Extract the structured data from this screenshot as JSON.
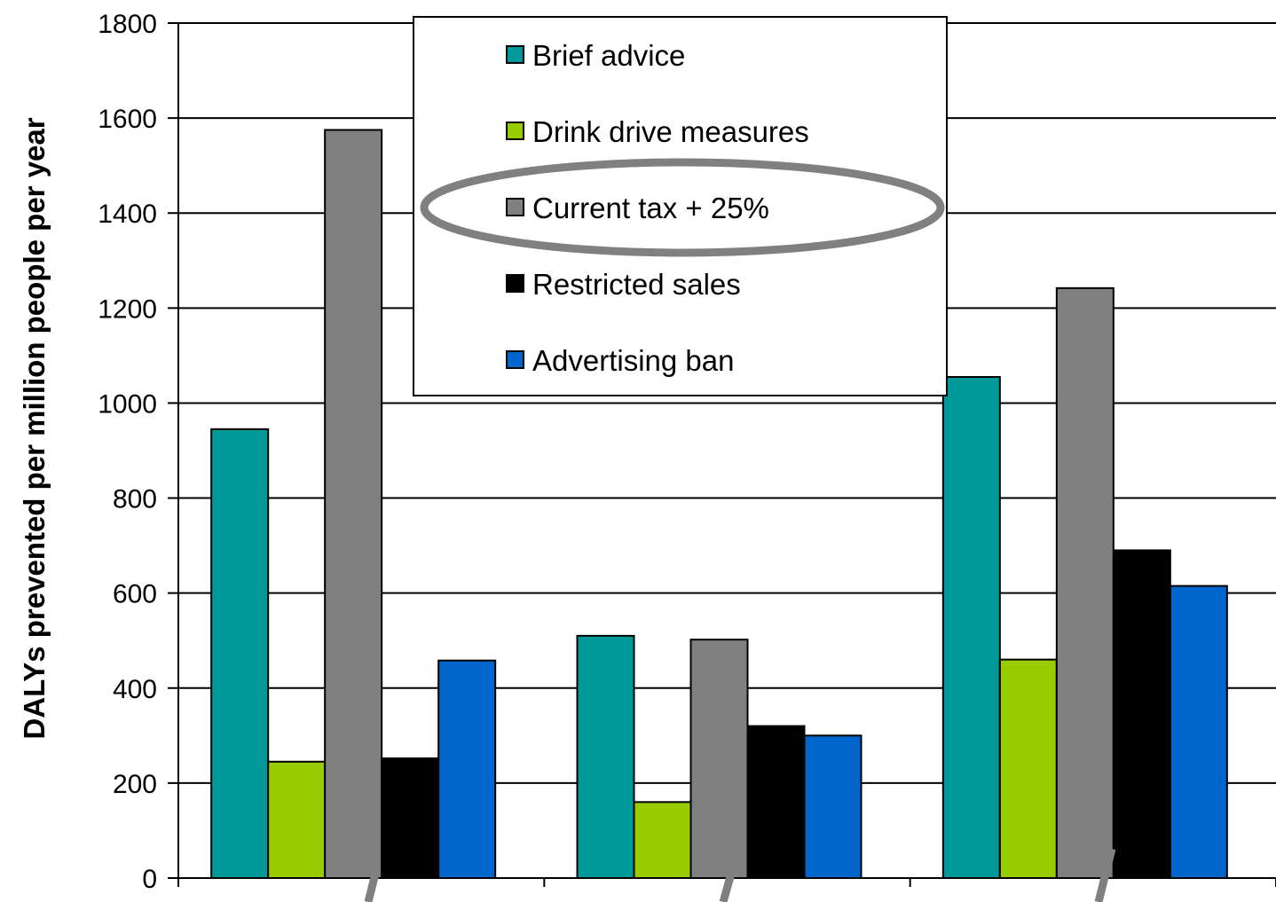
{
  "chart_data": {
    "type": "bar",
    "title": "",
    "xlabel": "",
    "ylabel": "DALYs prevented per million people per year",
    "ylim": [
      0,
      1800
    ],
    "yticks": [
      0,
      200,
      400,
      600,
      800,
      1000,
      1200,
      1400,
      1600,
      1800
    ],
    "grid": true,
    "legend_position": "top-center",
    "categories": [
      "",
      "",
      ""
    ],
    "series": [
      {
        "name": "Brief advice",
        "color": "#009999",
        "values": [
          945,
          510,
          1055
        ]
      },
      {
        "name": "Drink drive measures",
        "color": "#99cc00",
        "values": [
          245,
          160,
          460
        ]
      },
      {
        "name": "Current tax + 25%",
        "color": "#808080",
        "values": [
          1575,
          502,
          1242
        ]
      },
      {
        "name": "Restricted sales",
        "color": "#000000",
        "values": [
          252,
          320,
          690
        ]
      },
      {
        "name": "Advertising ban",
        "color": "#0066cc",
        "values": [
          458,
          300,
          615
        ]
      }
    ],
    "highlighted_series": "Current tax + 25%",
    "highlight_color": "#808080"
  }
}
